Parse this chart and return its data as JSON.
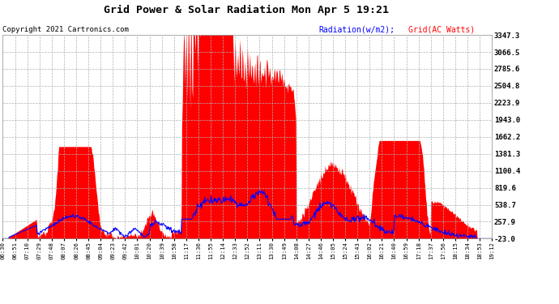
{
  "title": "Grid Power & Solar Radiation Mon Apr 5 19:21",
  "copyright": "Copyright 2021 Cartronics.com",
  "legend_radiation": "Radiation(w/m2)",
  "legend_grid": "Grid(AC Watts)",
  "y_ticks": [
    -23.0,
    257.9,
    538.7,
    819.6,
    1100.4,
    1381.3,
    1662.2,
    1943.0,
    2223.9,
    2504.8,
    2785.6,
    3066.5,
    3347.3
  ],
  "x_labels": [
    "06:30",
    "06:51",
    "07:10",
    "07:29",
    "07:48",
    "08:07",
    "08:26",
    "08:45",
    "09:04",
    "09:23",
    "09:42",
    "10:01",
    "10:20",
    "10:39",
    "10:58",
    "11:17",
    "11:36",
    "11:55",
    "12:14",
    "12:33",
    "12:52",
    "13:11",
    "13:30",
    "13:49",
    "14:08",
    "14:27",
    "14:46",
    "15:05",
    "15:24",
    "15:43",
    "16:02",
    "16:21",
    "16:40",
    "16:59",
    "17:18",
    "17:37",
    "17:56",
    "18:15",
    "18:34",
    "18:53",
    "19:12"
  ],
  "background_color": "#ffffff",
  "grid_color": "#b0b0b0",
  "fill_color": "#ff0000",
  "line_color": "#0000ff",
  "title_color": "#000000",
  "copyright_color": "#000000",
  "legend_radiation_color": "#0000ff",
  "legend_grid_color": "#ff0000",
  "ymin": -23.0,
  "ymax": 3347.3
}
